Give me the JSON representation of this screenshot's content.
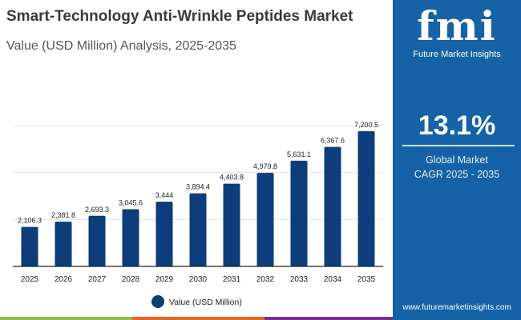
{
  "header": {
    "title": "Smart-Technology Anti-Wrinkle Peptides Market",
    "subtitle": "Value (USD Million) Analysis, 2025-2035"
  },
  "panel": {
    "logo_text": "fmi",
    "brand": "Future Market Insights",
    "cagr": "13.1%",
    "cagr_label_1": "Global Market",
    "cagr_label_2": "CAGR 2025 - 2035",
    "url": "www.futuremarketinsights.com",
    "color": "#1662a6"
  },
  "chart_data": {
    "type": "bar",
    "categories": [
      "2025",
      "2026",
      "2027",
      "2028",
      "2029",
      "2030",
      "2031",
      "2032",
      "2033",
      "2034",
      "2035"
    ],
    "series": [
      {
        "name": "Value (USD Million)",
        "values": [
          2106.3,
          2381.8,
          2693.3,
          3045.6,
          3444,
          3894.4,
          4403.8,
          4979.8,
          5631.1,
          6367.6,
          7200.5
        ],
        "labels": [
          "2,106.3",
          "2,381.8",
          "2,693.3",
          "3,045.6",
          "3,444",
          "3,894.4",
          "4,403.8",
          "4,979.8",
          "5,631.1",
          "6,367.6",
          "7,200.5"
        ],
        "color": "#0d3d7a"
      }
    ],
    "ylim": [
      0,
      7500
    ],
    "grid": true,
    "legend": "bottom",
    "xlabel": "",
    "ylabel": ""
  },
  "footer_colors": [
    "#8bc34a",
    "#e8632b",
    "#7b2f8f"
  ]
}
